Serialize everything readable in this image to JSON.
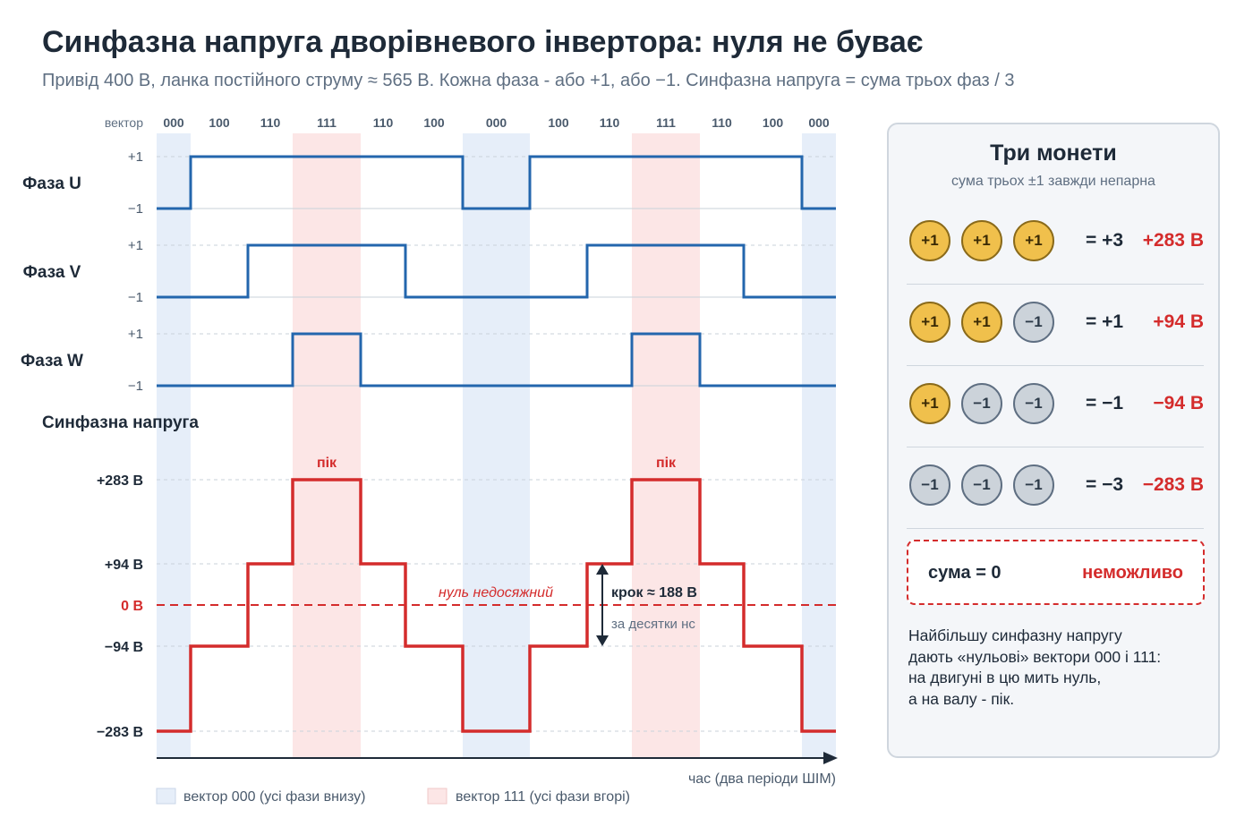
{
  "header": {
    "title": "Синфазна напруга дворівневого інвертора: нуля не буває",
    "subtitle": "Привід 400 В, ланка постійного струму ≈ 565 В. Кожна фаза - або +1, або −1. Синфазна напруга = сума трьох фаз / 3"
  },
  "colors": {
    "phase": "#2366ad",
    "common_mode": "#d42c2c",
    "band_000": "#e6eef9",
    "band_111": "#fce6e6",
    "coin_plus": "#f0c04c",
    "coin_minus": "#ccd3da"
  },
  "chart_data": {
    "type": "line",
    "vector_axis_label": "вектор",
    "vectors": [
      "000",
      "100",
      "110",
      "111",
      "110",
      "100",
      "000",
      "100",
      "110",
      "111",
      "110",
      "100",
      "000"
    ],
    "phases": [
      {
        "name": "Фаза U",
        "levels": [
          -1,
          1,
          1,
          1,
          1,
          1,
          -1,
          1,
          1,
          1,
          1,
          1,
          -1
        ]
      },
      {
        "name": "Фаза V",
        "levels": [
          -1,
          -1,
          1,
          1,
          1,
          -1,
          -1,
          -1,
          1,
          1,
          1,
          -1,
          -1
        ]
      },
      {
        "name": "Фаза W",
        "levels": [
          -1,
          -1,
          -1,
          1,
          -1,
          -1,
          -1,
          -1,
          -1,
          1,
          -1,
          -1,
          -1
        ]
      }
    ],
    "phase_ticks": [
      "+1",
      "−1"
    ],
    "common_mode": {
      "title": "Синфазна напруга",
      "unit": "В",
      "values": [
        -283,
        -94,
        94,
        283,
        94,
        -94,
        -283,
        -94,
        94,
        283,
        94,
        -94,
        -283
      ],
      "yticks": [
        {
          "value": 283,
          "label": "+283 В"
        },
        {
          "value": 94,
          "label": "+94 В"
        },
        {
          "value": 0,
          "label": "0 В"
        },
        {
          "value": -94,
          "label": "−94 В"
        },
        {
          "value": -283,
          "label": "−283 В"
        }
      ],
      "ylim": [
        -283,
        283
      ],
      "peak_label": "пік",
      "zero_note": "нуль недосяжний",
      "step_label": "крок ≈ 188 В",
      "step_time_label": "за десятки нс",
      "step_range": [
        -94,
        94
      ]
    },
    "xlabel": "час (два періоди ШІМ)",
    "grid": true,
    "legend": {
      "position": "bottom-left",
      "items": [
        "вектор 000 (усі фази внизу)",
        "вектор 111 (усі фази вгорі)"
      ]
    }
  },
  "panel": {
    "title": "Три монети",
    "subtitle": "сума трьох ±1 завжди непарна",
    "rows": [
      {
        "coins": [
          "+1",
          "+1",
          "+1"
        ],
        "sum": "= +3",
        "volt": "+283 В"
      },
      {
        "coins": [
          "+1",
          "+1",
          "−1"
        ],
        "sum": "= +1",
        "volt": "+94 В"
      },
      {
        "coins": [
          "+1",
          "−1",
          "−1"
        ],
        "sum": "= −1",
        "volt": "−94 В"
      },
      {
        "coins": [
          "−1",
          "−1",
          "−1"
        ],
        "sum": "= −3",
        "volt": "−283 В"
      }
    ],
    "impossible": {
      "label": "сума = 0",
      "status": "неможливо"
    },
    "note_lines": [
      "Найбільшу синфазну напругу",
      "дають «нульові» вектори 000 і 111:",
      "на двигуні в цю мить нуль,",
      "а на валу - пік."
    ]
  }
}
